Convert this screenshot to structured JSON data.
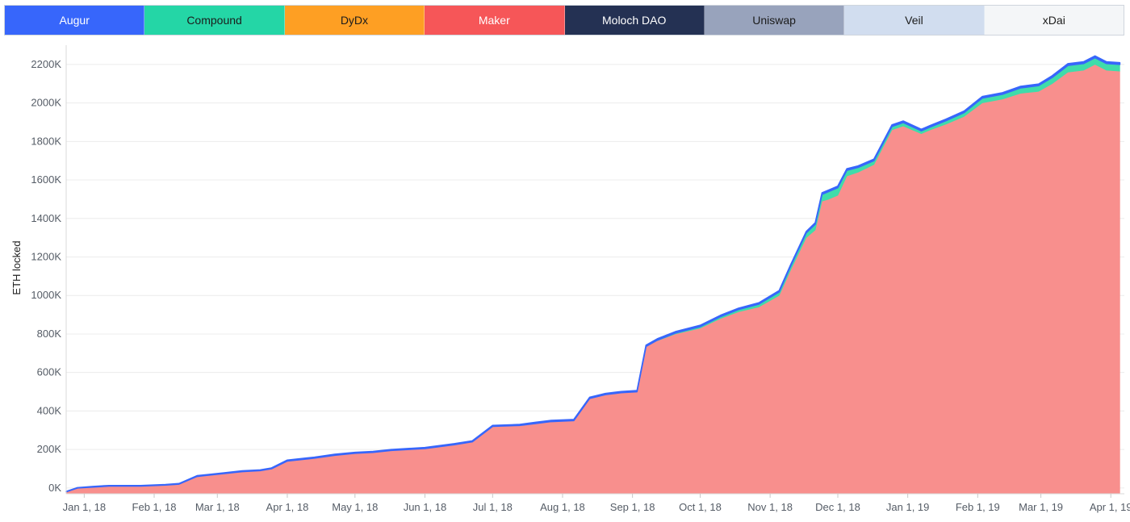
{
  "legend": {
    "items": [
      {
        "label": "Augur",
        "color": "#3766fb",
        "text_color": "#ffffff"
      },
      {
        "label": "Compound",
        "color": "#24d6a6",
        "text_color": "#1c1c1c"
      },
      {
        "label": "DyDx",
        "color": "#fe9f23",
        "text_color": "#1c1c1c"
      },
      {
        "label": "Maker",
        "color": "#f65658",
        "text_color": "#ffffff"
      },
      {
        "label": "Moloch DAO",
        "color": "#243153",
        "text_color": "#ffffff"
      },
      {
        "label": "Uniswap",
        "color": "#98a3bc",
        "text_color": "#1c1c1c"
      },
      {
        "label": "Veil",
        "color": "#d1ddef",
        "text_color": "#1c1c1c"
      },
      {
        "label": "xDai",
        "color": "#f4f6f8",
        "text_color": "#1c1c1c"
      }
    ]
  },
  "chart_data": {
    "type": "area",
    "stacked": true,
    "ylabel": "ETH locked",
    "xlabel": "",
    "ylim": [
      -30,
      2300
    ],
    "xlim": [
      "2017-12-24",
      "2019-04-07"
    ],
    "grid": true,
    "legend_position": "top",
    "y_ticks": [
      0,
      200,
      400,
      600,
      800,
      1000,
      1200,
      1400,
      1600,
      1800,
      2000,
      2200
    ],
    "y_tick_labels": [
      "0K",
      "200K",
      "400K",
      "600K",
      "800K",
      "1000K",
      "1200K",
      "1400K",
      "1600K",
      "1800K",
      "2000K",
      "2200K"
    ],
    "x_ticks": [
      "2018-01-01",
      "2018-02-01",
      "2018-03-01",
      "2018-04-01",
      "2018-05-01",
      "2018-06-01",
      "2018-07-01",
      "2018-08-01",
      "2018-09-01",
      "2018-10-01",
      "2018-11-01",
      "2018-12-01",
      "2019-01-01",
      "2019-02-01",
      "2019-03-01",
      "2019-04-01"
    ],
    "x_tick_labels": [
      "Jan 1, 18",
      "Feb 1, 18",
      "Mar 1, 18",
      "Apr 1, 18",
      "May 1, 18",
      "Jun 1, 18",
      "Jul 1, 18",
      "Aug 1, 18",
      "Sep 1, 18",
      "Oct 1, 18",
      "Nov 1, 18",
      "Dec 1, 18",
      "Jan 1, 19",
      "Feb 1, 19",
      "Mar 1, 19",
      "Apr 1, 19"
    ],
    "x": [
      "2017-12-24",
      "2017-12-29",
      "2018-01-05",
      "2018-01-12",
      "2018-01-26",
      "2018-02-06",
      "2018-02-12",
      "2018-02-20",
      "2018-03-04",
      "2018-03-12",
      "2018-03-20",
      "2018-03-25",
      "2018-04-01",
      "2018-04-13",
      "2018-04-22",
      "2018-05-01",
      "2018-05-09",
      "2018-05-17",
      "2018-06-01",
      "2018-06-14",
      "2018-06-22",
      "2018-07-01",
      "2018-07-13",
      "2018-07-20",
      "2018-07-27",
      "2018-08-06",
      "2018-08-13",
      "2018-08-20",
      "2018-08-27",
      "2018-09-03",
      "2018-09-07",
      "2018-09-12",
      "2018-09-20",
      "2018-10-01",
      "2018-10-10",
      "2018-10-18",
      "2018-10-27",
      "2018-11-05",
      "2018-11-10",
      "2018-11-17",
      "2018-11-21",
      "2018-11-24",
      "2018-11-27",
      "2018-12-01",
      "2018-12-05",
      "2018-12-10",
      "2018-12-17",
      "2018-12-25",
      "2018-12-30",
      "2019-01-07",
      "2019-01-11",
      "2019-01-18",
      "2019-01-26",
      "2019-02-03",
      "2019-02-12",
      "2019-02-20",
      "2019-02-28",
      "2019-03-06",
      "2019-03-13",
      "2019-03-20",
      "2019-03-25",
      "2019-03-30",
      "2019-04-05"
    ],
    "series": [
      {
        "name": "Maker",
        "color": "#f88f8d",
        "values": [
          -20,
          0,
          5,
          10,
          10,
          15,
          20,
          60,
          75,
          85,
          90,
          100,
          140,
          155,
          170,
          180,
          185,
          195,
          205,
          225,
          240,
          320,
          325,
          335,
          345,
          350,
          465,
          485,
          495,
          500,
          735,
          765,
          800,
          830,
          880,
          915,
          940,
          1000,
          1130,
          1300,
          1340,
          1490,
          1500,
          1520,
          1620,
          1640,
          1680,
          1860,
          1880,
          1840,
          1860,
          1890,
          1930,
          2000,
          2020,
          2050,
          2060,
          2100,
          2160,
          2170,
          2200,
          2170,
          2165
        ]
      },
      {
        "name": "Compound",
        "color": "#3fdcaa",
        "values": [
          0,
          0,
          0,
          0,
          0,
          0,
          0,
          0,
          0,
          0,
          0,
          0,
          0,
          0,
          0,
          0,
          0,
          0,
          0,
          0,
          0,
          0,
          0,
          0,
          0,
          0,
          0,
          0,
          0,
          0,
          0,
          3,
          5,
          8,
          10,
          12,
          15,
          18,
          20,
          25,
          30,
          35,
          40,
          40,
          30,
          25,
          20,
          18,
          18,
          15,
          15,
          18,
          20,
          25,
          25,
          28,
          30,
          32,
          35,
          35,
          35,
          35,
          35
        ]
      },
      {
        "name": "Augur",
        "color": "#3766fb",
        "values": [
          2,
          2,
          3,
          3,
          3,
          3,
          3,
          4,
          4,
          4,
          4,
          4,
          5,
          5,
          5,
          5,
          5,
          5,
          5,
          5,
          5,
          5,
          5,
          6,
          6,
          6,
          6,
          6,
          6,
          6,
          7,
          7,
          7,
          7,
          7,
          7,
          7,
          7,
          7,
          7,
          8,
          8,
          8,
          8,
          8,
          8,
          8,
          8,
          8,
          8,
          8,
          8,
          8,
          8,
          8,
          8,
          8,
          9,
          9,
          9,
          9,
          9,
          9
        ]
      }
    ]
  }
}
